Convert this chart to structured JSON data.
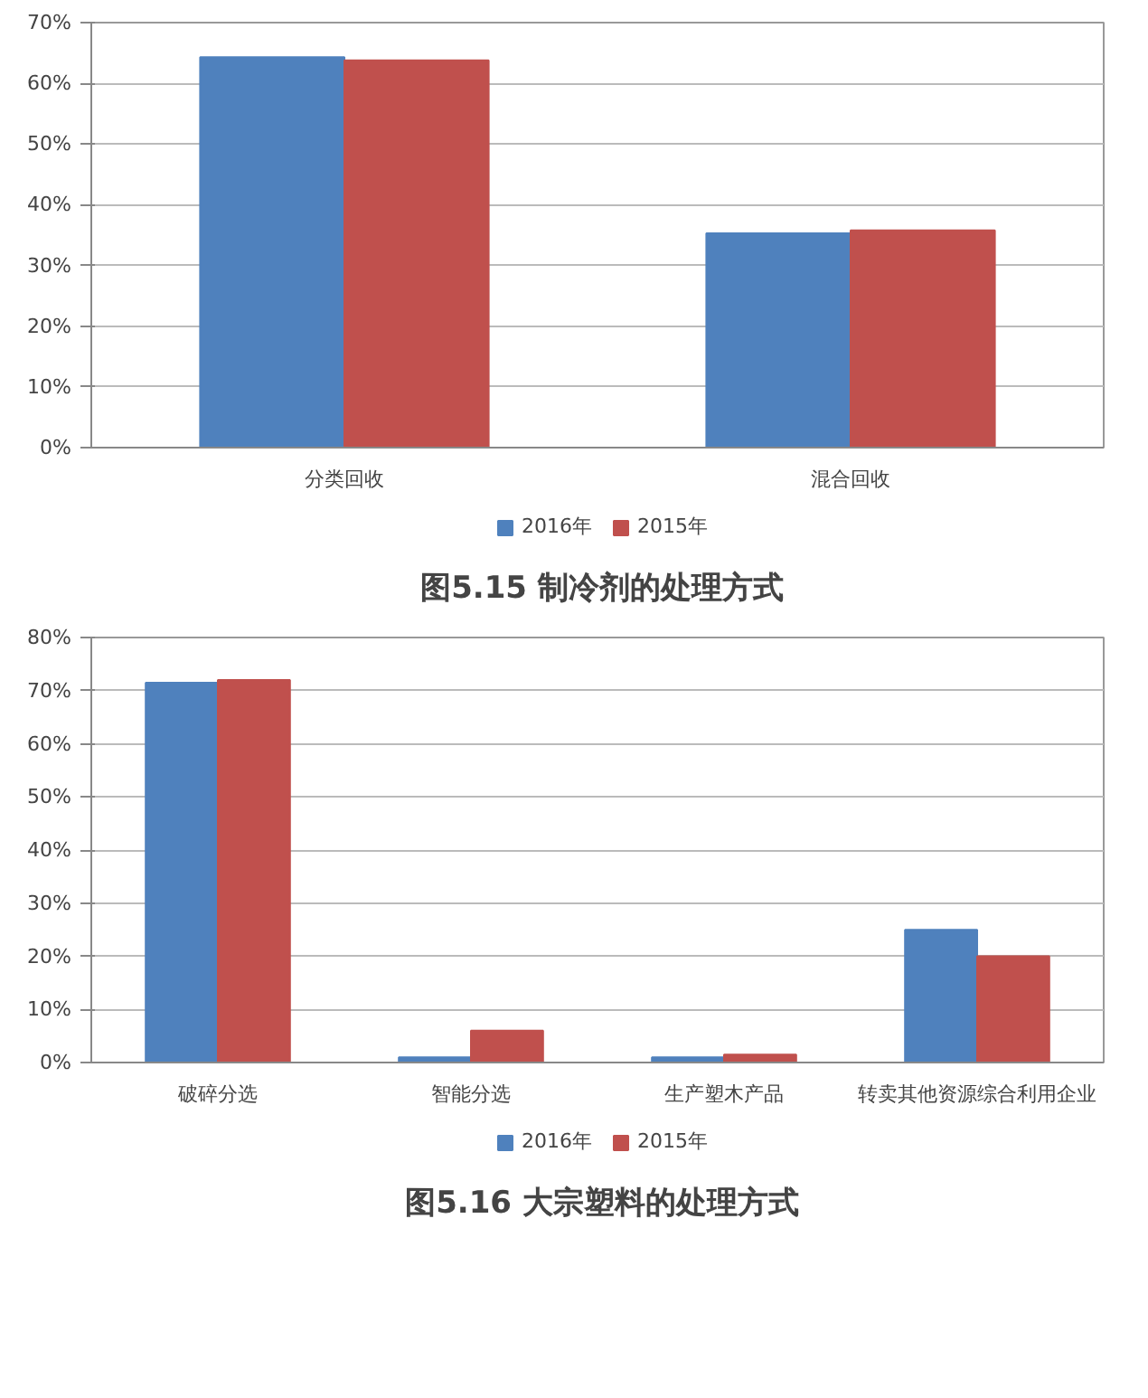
{
  "chart_data": [
    {
      "type": "bar",
      "title": "图5.15 制冷剂的处理方式",
      "categories": [
        "分类回收",
        "混合回收"
      ],
      "series": [
        {
          "name": "2016年",
          "color": "#4f81bd",
          "values": [
            64.3,
            35.3
          ]
        },
        {
          "name": "2015年",
          "color": "#c0504d",
          "values": [
            63.8,
            35.8
          ]
        }
      ],
      "ylim": [
        0,
        70
      ],
      "yticks": [
        {
          "value": 0,
          "label": "0%"
        },
        {
          "value": 10,
          "label": "10%"
        },
        {
          "value": 20,
          "label": "20%"
        },
        {
          "value": 30,
          "label": "30%"
        },
        {
          "value": 40,
          "label": "40%"
        },
        {
          "value": 50,
          "label": "50%"
        },
        {
          "value": 60,
          "label": "60%"
        },
        {
          "value": 70,
          "label": "70%"
        }
      ],
      "grid": "y",
      "legend": "bottom"
    },
    {
      "type": "bar",
      "title": "图5.16 大宗塑料的处理方式",
      "categories": [
        "破碎分选",
        "智能分选",
        "生产塑木产品",
        "转卖其他资源综合利用企业"
      ],
      "series": [
        {
          "name": "2016年",
          "color": "#4f81bd",
          "values": [
            71.5,
            1,
            1,
            25
          ]
        },
        {
          "name": "2015年",
          "color": "#c0504d",
          "values": [
            72,
            6,
            1.5,
            20
          ]
        }
      ],
      "ylim": [
        0,
        80
      ],
      "yticks": [
        {
          "value": 0,
          "label": "0%"
        },
        {
          "value": 10,
          "label": "10%"
        },
        {
          "value": 20,
          "label": "20%"
        },
        {
          "value": 30,
          "label": "30%"
        },
        {
          "value": 40,
          "label": "40%"
        },
        {
          "value": 50,
          "label": "50%"
        },
        {
          "value": 60,
          "label": "60%"
        },
        {
          "value": 70,
          "label": "70%"
        },
        {
          "value": 80,
          "label": "80%"
        }
      ],
      "grid": "y",
      "legend": "bottom"
    }
  ]
}
